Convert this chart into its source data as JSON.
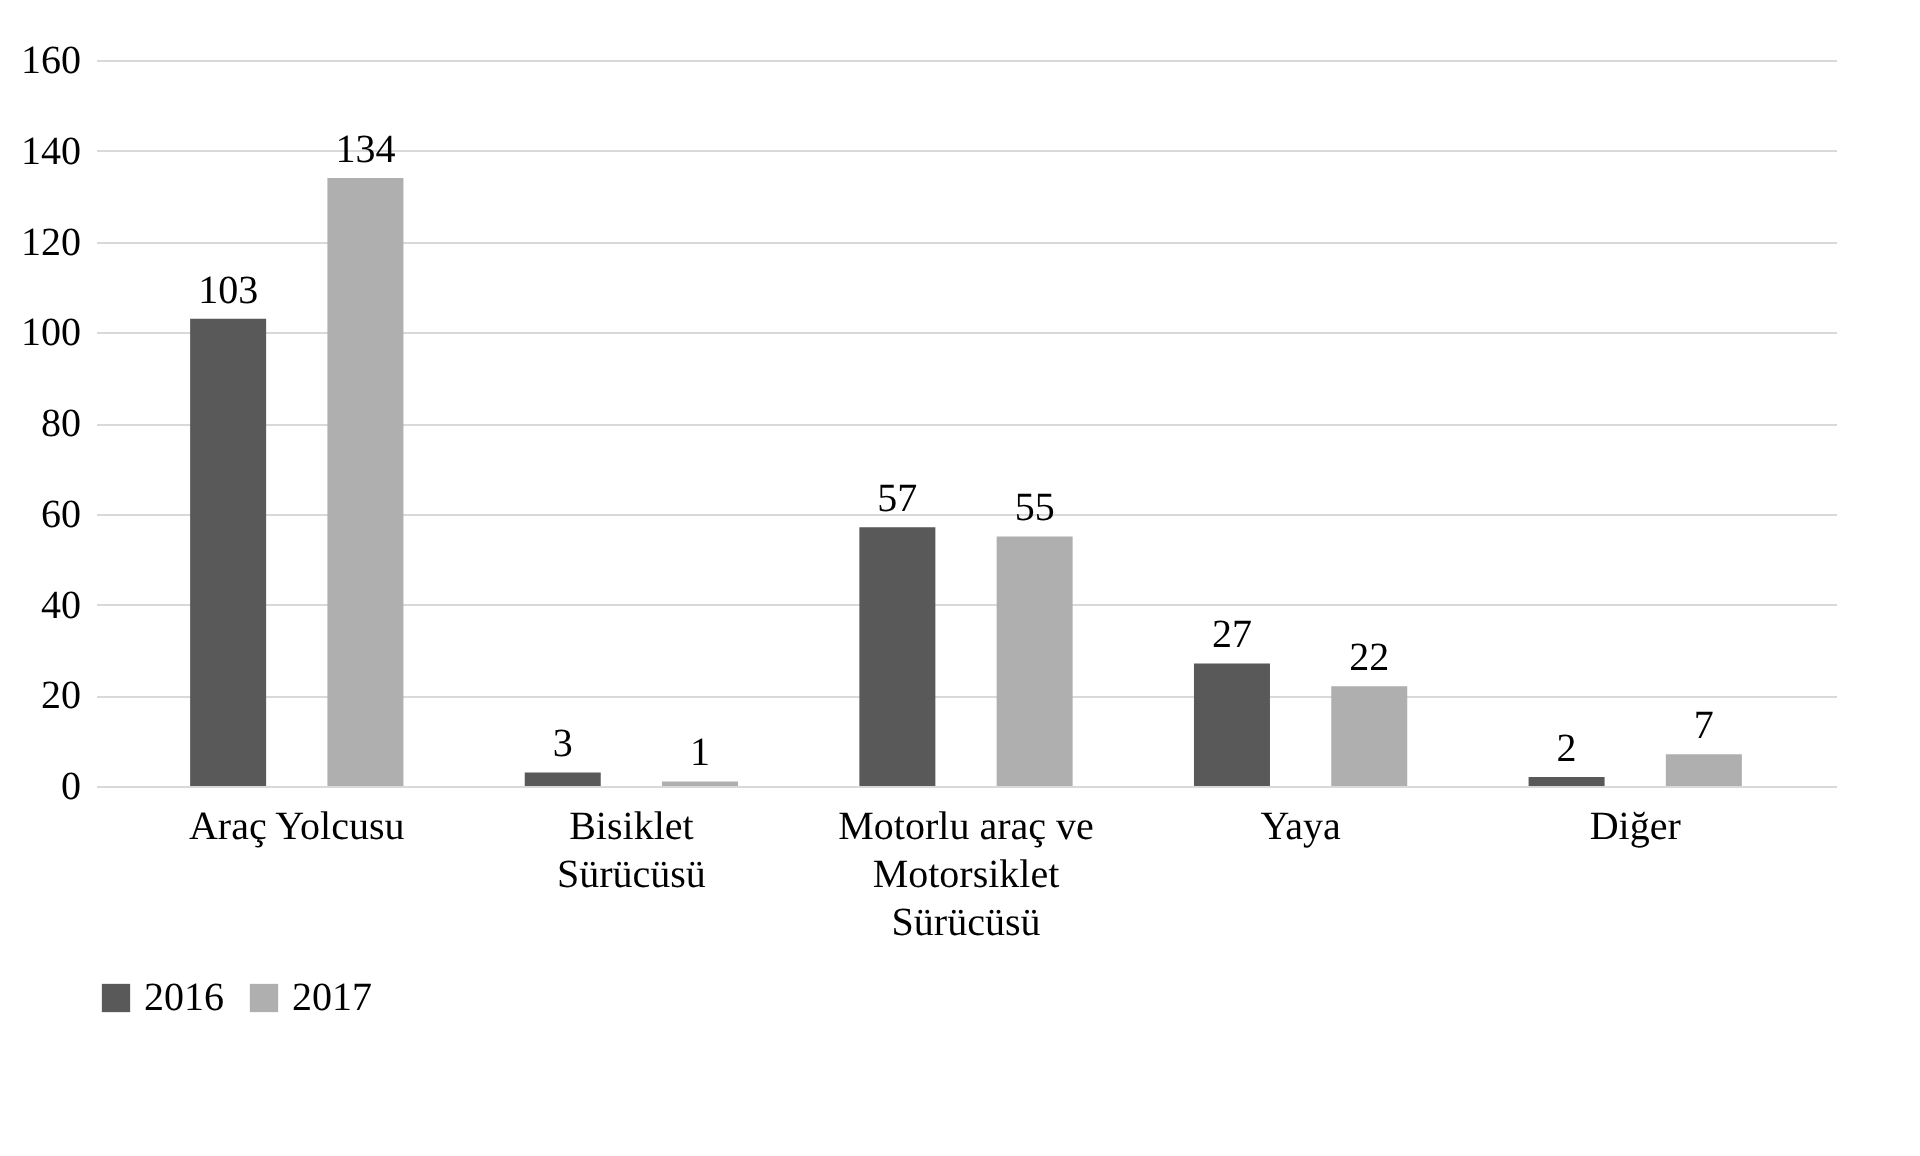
{
  "chart_data": {
    "type": "bar",
    "categories": [
      "Araç Yolcusu",
      "Bisiklet Sürücüsü",
      "Motorlu araç ve Motorsiklet Sürücüsü",
      "Yaya",
      "Diğer"
    ],
    "series": [
      {
        "name": "2016",
        "color": "#595959",
        "values": [
          103,
          3,
          57,
          27,
          2
        ]
      },
      {
        "name": "2017",
        "color": "#afafaf",
        "values": [
          134,
          1,
          55,
          22,
          7
        ]
      }
    ],
    "ylim": [
      0,
      160
    ],
    "yticks": [
      0,
      20,
      40,
      60,
      80,
      100,
      120,
      140,
      160
    ],
    "grid": "y",
    "legend": "bottom",
    "data_labels": true
  }
}
